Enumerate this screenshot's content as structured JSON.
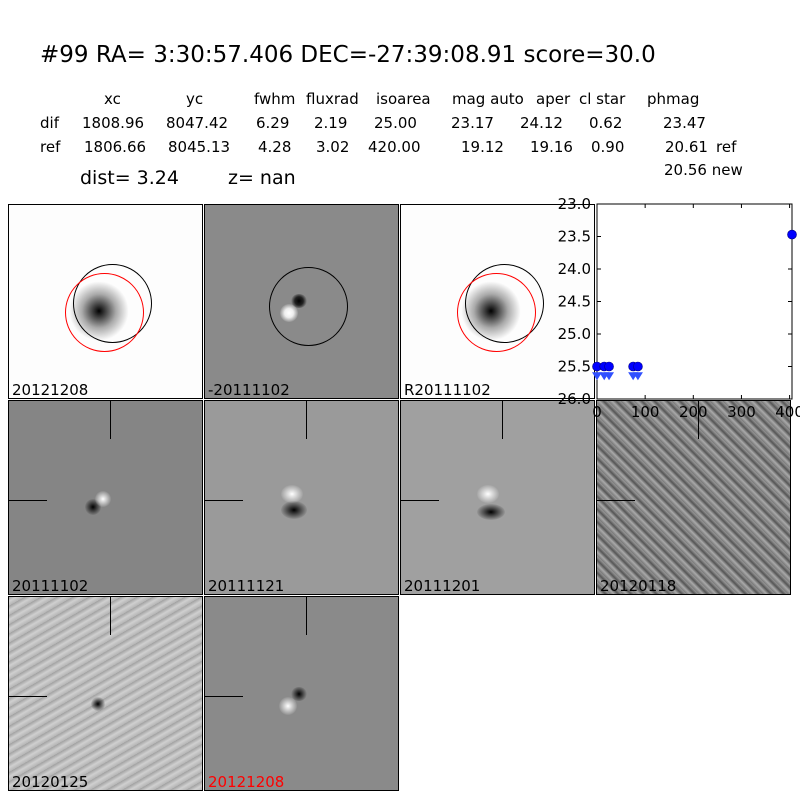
{
  "header": {
    "title": "#99   RA= 3:30:57.406 DEC=-27:39:08.91      score=30.0"
  },
  "table": {
    "columns": [
      "xc",
      "yc",
      "fwhm",
      "fluxrad",
      "isoarea",
      "mag auto",
      "aper",
      "cl star",
      "phmag"
    ],
    "rows": [
      {
        "label": "dif",
        "values": [
          "1808.96",
          "8047.42",
          "6.29",
          "2.19",
          "25.00",
          "23.17",
          "24.12",
          "0.62",
          "23.47"
        ],
        "suffix": ""
      },
      {
        "label": "ref",
        "values": [
          "1806.66",
          "8045.13",
          "4.28",
          "3.02",
          "420.00",
          "19.12",
          "19.16",
          "0.90",
          "20.61"
        ],
        "suffix": "ref"
      }
    ],
    "extra": "20.56 new",
    "dist": "dist=  3.24",
    "z": "z=   nan"
  },
  "panels": [
    {
      "label": "20121208",
      "color": "#000000"
    },
    {
      "label": "-20111102",
      "color": "#000000"
    },
    {
      "label": "R20111102",
      "color": "#000000"
    },
    {
      "label": "20111102",
      "color": "#000000"
    },
    {
      "label": "20111121",
      "color": "#000000"
    },
    {
      "label": "20111201",
      "color": "#000000"
    },
    {
      "label": "20120118",
      "color": "#000000"
    },
    {
      "label": "20120125",
      "color": "#000000"
    },
    {
      "label": "20121208",
      "color": "#ff0000"
    }
  ],
  "chart_data": {
    "type": "scatter",
    "xlim": [
      0,
      405
    ],
    "ylim": [
      26.0,
      23.0
    ],
    "y_inverted": true,
    "xticks": [
      "0",
      "100",
      "200",
      "300",
      "400"
    ],
    "yticks": [
      "23.0",
      "23.5",
      "24.0",
      "24.5",
      "25.0",
      "25.5",
      "26.0"
    ],
    "marker_color": "#0000ff",
    "series": [
      {
        "marker": "circle",
        "points": [
          [
            0,
            25.5
          ],
          [
            15,
            25.5
          ],
          [
            25,
            25.5
          ],
          [
            75,
            25.5
          ],
          [
            85,
            25.5
          ],
          [
            405,
            23.47
          ]
        ]
      },
      {
        "marker": "triangle-down",
        "points": [
          [
            0,
            25.65
          ],
          [
            15,
            25.65
          ],
          [
            25,
            25.65
          ],
          [
            75,
            25.65
          ],
          [
            85,
            25.65
          ]
        ]
      }
    ]
  }
}
